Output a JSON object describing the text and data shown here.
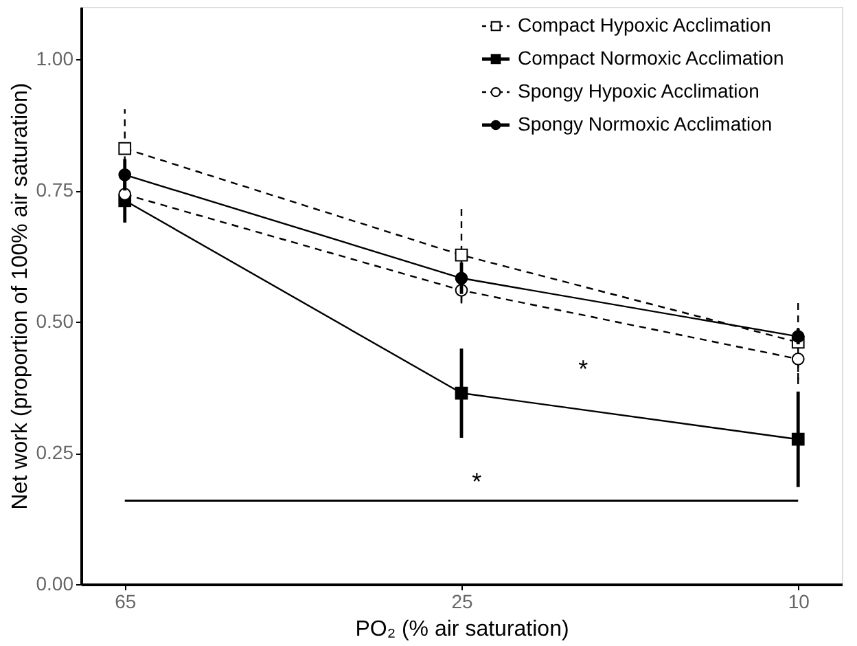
{
  "chart_data": {
    "type": "line",
    "xlabel": "PO₂ (% air saturation)",
    "ylabel": "Net work (proportion of 100% air saturation)",
    "categories": [
      "65",
      "25",
      "10"
    ],
    "series": [
      {
        "name": "Compact Hypoxic Acclimation",
        "color": "#000000",
        "marker": "square",
        "line_style": "dashed",
        "values": [
          0.83,
          0.627,
          0.461
        ],
        "errors": [
          0.075,
          0.09,
          0.08
        ]
      },
      {
        "name": "Compact Normoxic Acclimation",
        "color": "#000000",
        "marker": "square",
        "line_style": "solid",
        "values": [
          0.731,
          0.364,
          0.276
        ],
        "errors": [
          0.042,
          0.085,
          0.091
        ]
      },
      {
        "name": "Spongy Hypoxic Acclimation",
        "color": "#000000",
        "marker": "circle",
        "line_style": "dashed",
        "values": [
          0.743,
          0.56,
          0.429
        ],
        "errors": [
          0.02,
          0.025,
          0.04
        ]
      },
      {
        "name": "Spongy Normoxic Acclimation",
        "color": "#000000",
        "marker": "circle",
        "line_style": "solid",
        "values": [
          0.78,
          0.583,
          0.472
        ],
        "errors": [
          0.03,
          0.03,
          0.015
        ]
      }
    ],
    "ylim": [
      0,
      1.1
    ],
    "yticks": [
      {
        "value": 0,
        "label": "0.00"
      },
      {
        "value": 0.25,
        "label": "0.25"
      },
      {
        "value": 0.5,
        "label": "0.50"
      },
      {
        "value": 0.75,
        "label": "0.75"
      },
      {
        "value": 1,
        "label": "1.00"
      }
    ],
    "ref_lines": [
      {
        "axis": "y",
        "value": 0.159,
        "label": "*",
        "color": "#000000"
      }
    ],
    "annotations": [
      "*"
    ],
    "grid": false,
    "legend": "top right"
  }
}
